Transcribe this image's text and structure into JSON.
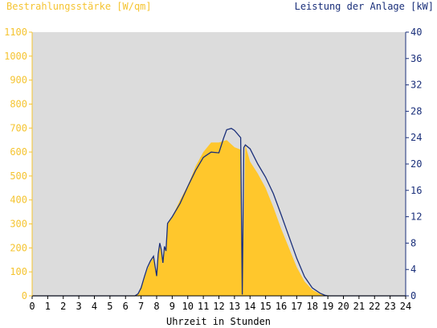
{
  "chart_data": {
    "type": "area",
    "ylabel_left": "Bestrahlungsstärke [W/qm]",
    "ylabel_right": "Leistung der Anlage [kW]",
    "xlabel": "Uhrzeit in Stunden",
    "xlim": [
      0,
      24
    ],
    "ylim_left": [
      0,
      1100
    ],
    "ylim_right": [
      0,
      40
    ],
    "x_ticks": [
      "0",
      "1",
      "2",
      "3",
      "4",
      "5",
      "6",
      "7",
      "8",
      "9",
      "10",
      "11",
      "12",
      "13",
      "14",
      "15",
      "16",
      "17",
      "18",
      "19",
      "20",
      "21",
      "22",
      "23",
      "24"
    ],
    "y_ticks_left": [
      "0",
      "100",
      "200",
      "300",
      "400",
      "500",
      "600",
      "700",
      "800",
      "900",
      "1000",
      "1100"
    ],
    "y_ticks_right": [
      "0",
      "4",
      "8",
      "12",
      "16",
      "20",
      "24",
      "28",
      "32",
      "36",
      "40"
    ],
    "colors": {
      "irradiance": "#ffc72c",
      "power": "#1a2f7a",
      "plot_bg": "#dcdcdc",
      "left_axis": "#f5c431",
      "right_axis": "#1a2f7a"
    },
    "series": [
      {
        "name": "Bestrahlungsstärke [W/qm]",
        "axis": "left",
        "x": [
          0,
          6.6,
          6.8,
          7.0,
          7.2,
          7.4,
          7.6,
          7.8,
          8.0,
          8.1,
          8.2,
          8.3,
          8.4,
          8.5,
          8.6,
          8.7,
          9.0,
          9.5,
          10.0,
          10.5,
          11.0,
          11.5,
          12.0,
          12.5,
          13.0,
          13.4,
          13.5,
          13.6,
          13.7,
          14.0,
          14.5,
          15.0,
          15.5,
          16.0,
          16.5,
          17.0,
          17.5,
          18.0,
          18.5,
          18.8,
          19.0,
          24
        ],
        "y": [
          0,
          0,
          10,
          30,
          70,
          110,
          140,
          160,
          80,
          170,
          210,
          190,
          130,
          200,
          180,
          300,
          330,
          400,
          460,
          540,
          600,
          640,
          640,
          650,
          620,
          610,
          10,
          300,
          630,
          560,
          510,
          450,
          370,
          280,
          200,
          120,
          60,
          25,
          8,
          2,
          0,
          0
        ]
      },
      {
        "name": "Leistung der Anlage [kW]",
        "axis": "right",
        "x": [
          0,
          6.6,
          6.8,
          7.0,
          7.2,
          7.4,
          7.6,
          7.8,
          8.0,
          8.1,
          8.2,
          8.3,
          8.4,
          8.5,
          8.6,
          8.7,
          9.0,
          9.5,
          10.0,
          10.5,
          11.0,
          11.5,
          12.0,
          12.3,
          12.5,
          12.8,
          13.0,
          13.4,
          13.5,
          13.6,
          13.7,
          14.0,
          14.5,
          15.0,
          15.5,
          16.0,
          16.5,
          17.0,
          17.5,
          18.0,
          18.5,
          18.8,
          19.0,
          24
        ],
        "y": [
          0,
          0,
          0.3,
          1.2,
          2.8,
          4.3,
          5.3,
          6.0,
          3.0,
          6.3,
          8.0,
          7.0,
          5.0,
          7.5,
          6.8,
          11.0,
          12.0,
          14.0,
          16.6,
          19.0,
          21.0,
          21.8,
          21.7,
          23.9,
          25.2,
          25.4,
          25.1,
          24.0,
          0.2,
          22.5,
          22.9,
          22.3,
          20.0,
          18.0,
          15.5,
          12.3,
          9.0,
          5.7,
          2.9,
          1.2,
          0.4,
          0.1,
          0,
          0
        ]
      }
    ]
  }
}
